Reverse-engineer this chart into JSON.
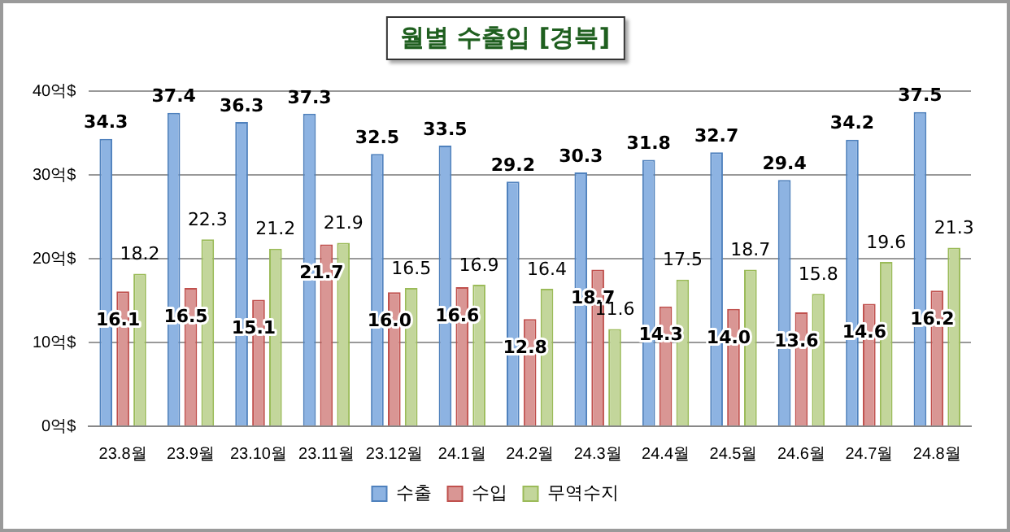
{
  "chart_data": {
    "type": "bar",
    "title": "월별 수출입 [경북]",
    "categories": [
      "23.8월",
      "23.9월",
      "23.10월",
      "23.11월",
      "23.12월",
      "24.1월",
      "24.2월",
      "24.3월",
      "24.4월",
      "24.5월",
      "24.6월",
      "24.7월",
      "24.8월"
    ],
    "series": [
      {
        "name": "수출",
        "color": "#8db3e2",
        "values": [
          34.3,
          37.4,
          36.3,
          37.3,
          32.5,
          33.5,
          29.2,
          30.3,
          31.8,
          32.7,
          29.4,
          34.2,
          37.5
        ],
        "value_labels": [
          "34.3",
          "37.4",
          "36.3",
          "37.3",
          "32.5",
          "33.5",
          "29.2",
          "30.3",
          "31.8",
          "32.7",
          "29.4",
          "34.2",
          "37.5"
        ]
      },
      {
        "name": "수입",
        "color": "#d99694",
        "values": [
          16.1,
          16.5,
          15.1,
          21.7,
          16.0,
          16.6,
          12.8,
          18.7,
          14.3,
          14.0,
          13.6,
          14.6,
          16.2
        ],
        "value_labels": [
          "16.1",
          "16.5",
          "15.1",
          "21.7",
          "16.0",
          "16.6",
          "12.8",
          "18.7",
          "14.3",
          "14.0",
          "13.6",
          "14.6",
          "16.2"
        ]
      },
      {
        "name": "무역수지",
        "color": "#c3d69b",
        "values": [
          18.2,
          22.3,
          21.2,
          21.9,
          16.5,
          16.9,
          16.4,
          11.6,
          17.5,
          18.7,
          15.8,
          19.6,
          21.3
        ],
        "value_labels": [
          "18.2",
          "22.3",
          "21.2",
          "21.9",
          "16.5",
          "16.9",
          "16.4",
          "11.6",
          "17.5",
          "18.7",
          "15.8",
          "19.6",
          "21.3"
        ]
      }
    ],
    "ylim": [
      0,
      40
    ],
    "yticks": [
      {
        "value": 0,
        "label": "0억$"
      },
      {
        "value": 10,
        "label": "10억$"
      },
      {
        "value": 20,
        "label": "20억$"
      },
      {
        "value": 30,
        "label": "30억$"
      },
      {
        "value": 40,
        "label": "40억$"
      }
    ],
    "grid": "y",
    "legend": "bottom"
  }
}
